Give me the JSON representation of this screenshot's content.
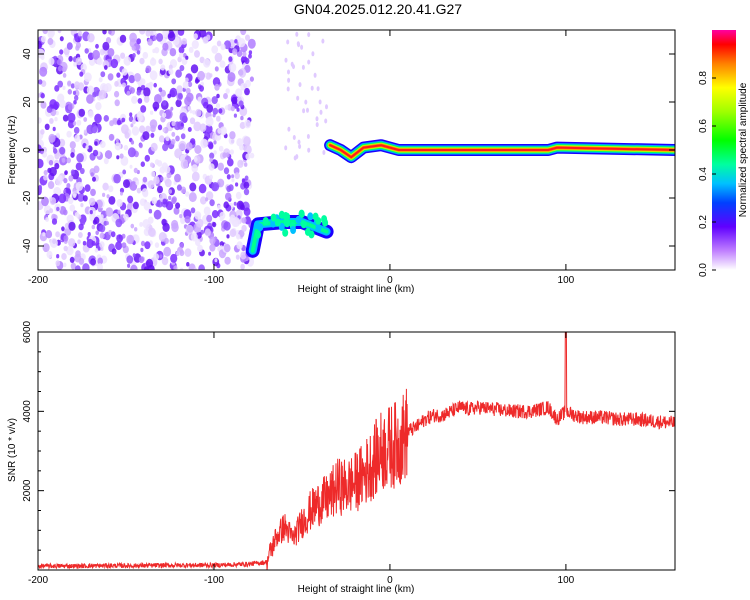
{
  "figure_title": "GN04.2025.012.20.41.G27",
  "chart_data": [
    {
      "type": "heatmap",
      "title": "GN04.2025.012.20.41.G27",
      "xlabel": "Height of straight line (km)",
      "ylabel": "Frequency (Hz)",
      "xlim": [
        -200,
        162
      ],
      "ylim": [
        -50,
        50
      ],
      "xticks": [
        -200,
        -100,
        0,
        100
      ],
      "yticks": [
        -40,
        -20,
        0,
        20,
        40
      ],
      "colorbar": {
        "label": "Normalized spectral amplitude",
        "range": [
          0,
          1
        ],
        "ticks": [
          "0.0",
          "0.2",
          "0.4",
          "0.6",
          "0.8"
        ],
        "colormap": "rainbow"
      },
      "noise_region_km": [
        -200,
        -78
      ],
      "signal_track": [
        {
          "x": -78,
          "y": -42
        },
        {
          "x": -75,
          "y": -31
        },
        {
          "x": -60,
          "y": -30
        },
        {
          "x": -50,
          "y": -30
        },
        {
          "x": -36,
          "y": -34
        },
        {
          "x": -34,
          "y": 2
        },
        {
          "x": -28,
          "y": 0
        },
        {
          "x": -22,
          "y": -3
        },
        {
          "x": -15,
          "y": 1
        },
        {
          "x": -5,
          "y": 2
        },
        {
          "x": 5,
          "y": 0
        },
        {
          "x": 10,
          "y": 0
        },
        {
          "x": 80,
          "y": 0
        },
        {
          "x": 90,
          "y": 0
        },
        {
          "x": 95,
          "y": 1
        },
        {
          "x": 162,
          "y": 0
        }
      ]
    },
    {
      "type": "line",
      "xlabel": "Height of straight line (km)",
      "ylabel": "SNR (10 * v/v)",
      "xlim": [
        -200,
        162
      ],
      "ylim": [
        0,
        6000
      ],
      "xticks": [
        -200,
        -100,
        0,
        100
      ],
      "yticks": [
        2000,
        4000,
        6000
      ],
      "color": "#ee2a2a",
      "series": [
        {
          "x": [
            -200,
            -180,
            -160,
            -140,
            -120,
            -100,
            -80,
            -70,
            -65,
            -60,
            -55,
            -50,
            -45,
            -40,
            -35,
            -30,
            -25,
            -20,
            -15,
            -10,
            -5,
            0,
            5,
            10,
            15,
            20,
            25,
            30,
            35,
            40,
            45,
            50,
            60,
            70,
            80,
            90,
            95,
            100,
            105,
            110,
            120,
            130,
            140,
            150,
            162
          ],
          "values": [
            100,
            100,
            110,
            110,
            120,
            120,
            150,
            200,
            800,
            1100,
            800,
            1200,
            1500,
            1700,
            1800,
            2100,
            2100,
            2200,
            2400,
            2700,
            3000,
            3100,
            3200,
            3500,
            3600,
            3800,
            3900,
            3900,
            4000,
            4100,
            4050,
            4100,
            4050,
            4000,
            4000,
            4100,
            3800,
            4000,
            3900,
            3850,
            3850,
            3800,
            3800,
            3750,
            3700
          ]
        }
      ]
    }
  ]
}
